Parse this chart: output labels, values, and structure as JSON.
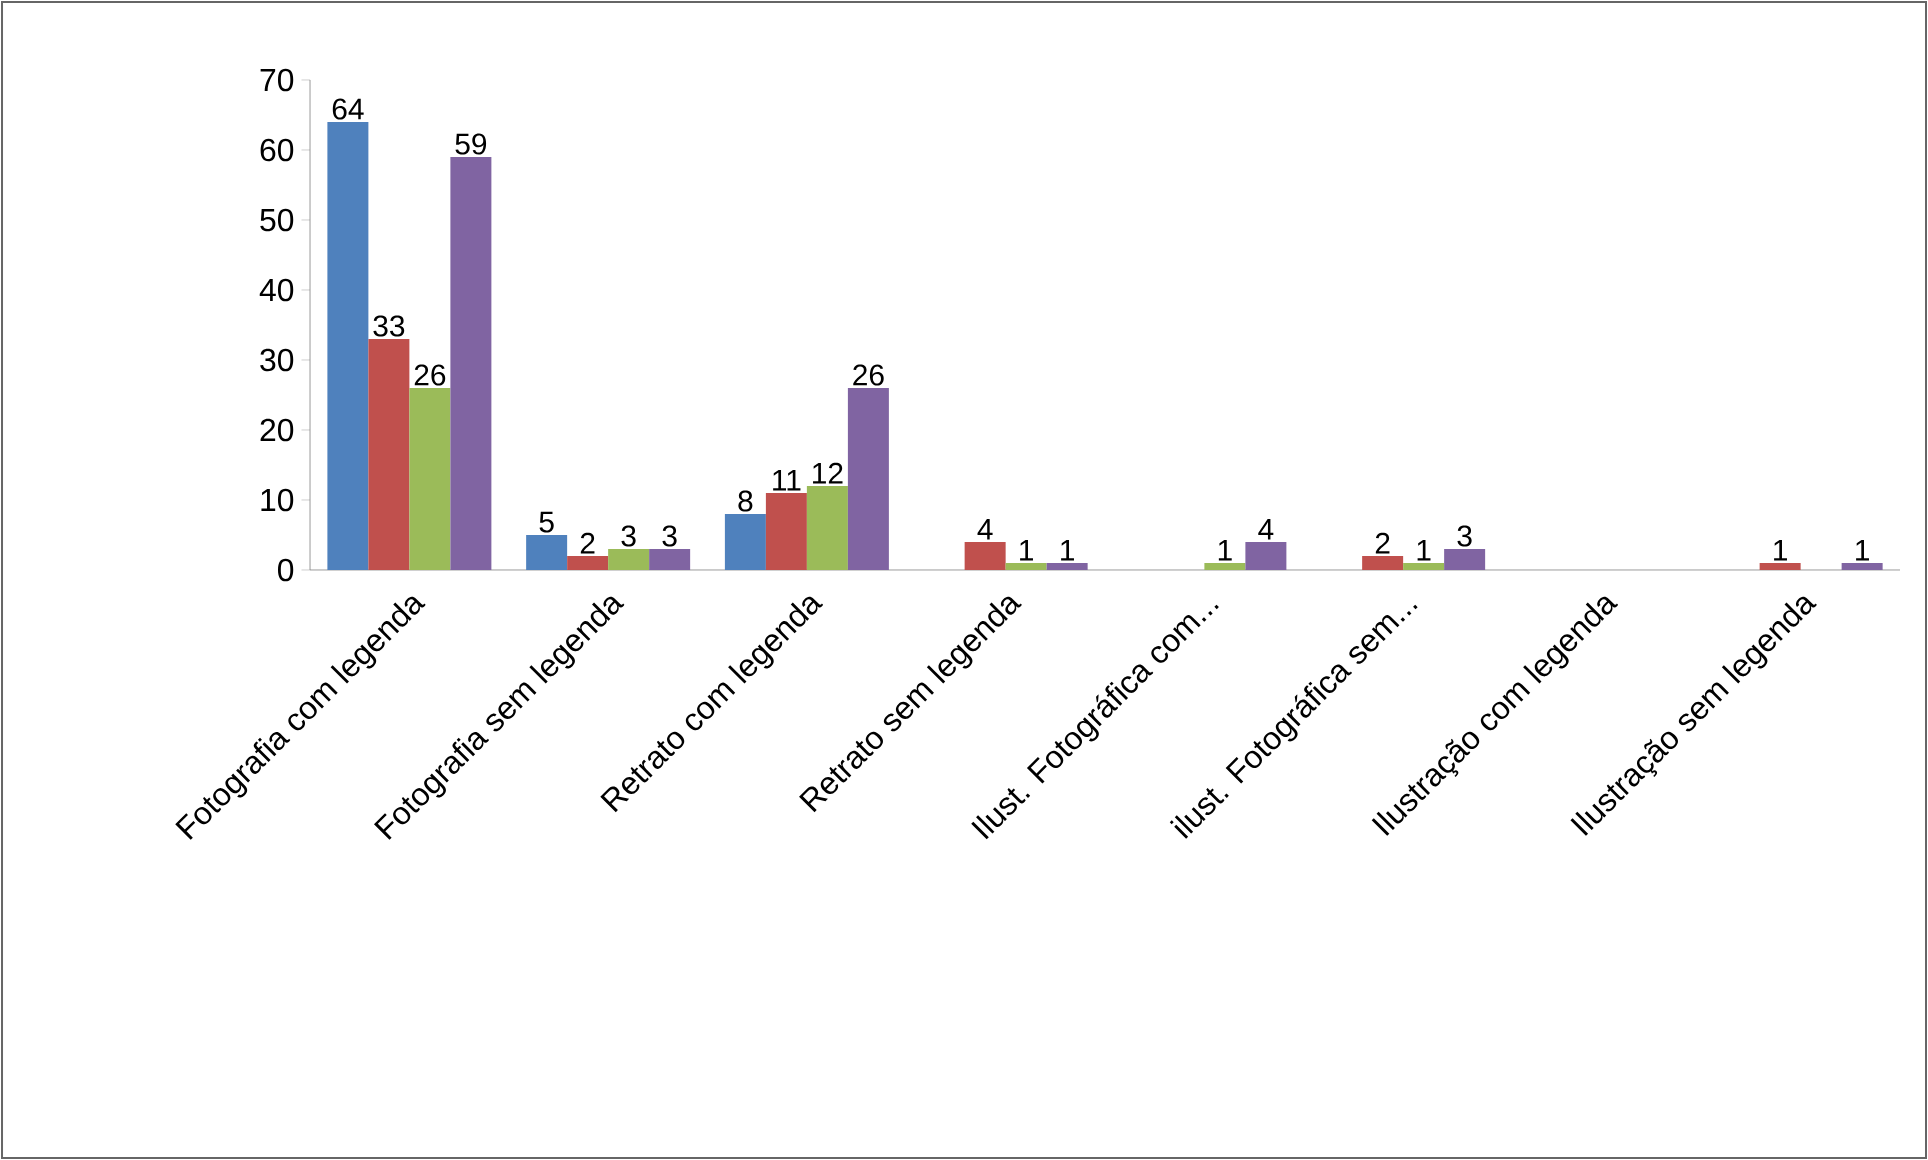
{
  "chart_data": {
    "type": "bar",
    "categories": [
      "Fotografia com legenda",
      "Fotografia sem legenda",
      "Retrato com legenda",
      "Retrato sem legenda",
      "Ilust. Fotográfica com...",
      "ilust. Fotográfica sem...",
      "Ilustração com legenda",
      "Ilustração sem legenda"
    ],
    "series": [
      {
        "color": "#4f81bd",
        "values": [
          64,
          5,
          8,
          null,
          null,
          null,
          null,
          null
        ]
      },
      {
        "color": "#c0504d",
        "values": [
          33,
          2,
          11,
          4,
          null,
          2,
          null,
          1
        ]
      },
      {
        "color": "#9bbb59",
        "values": [
          26,
          3,
          12,
          1,
          1,
          1,
          null,
          null
        ]
      },
      {
        "color": "#8064a2",
        "values": [
          59,
          3,
          26,
          1,
          4,
          3,
          null,
          1
        ]
      }
    ],
    "ylim": [
      0,
      70
    ],
    "yticks": [
      0,
      10,
      20,
      30,
      40,
      50,
      60,
      70
    ],
    "data_labels": true,
    "grid": false,
    "legend": false
  }
}
